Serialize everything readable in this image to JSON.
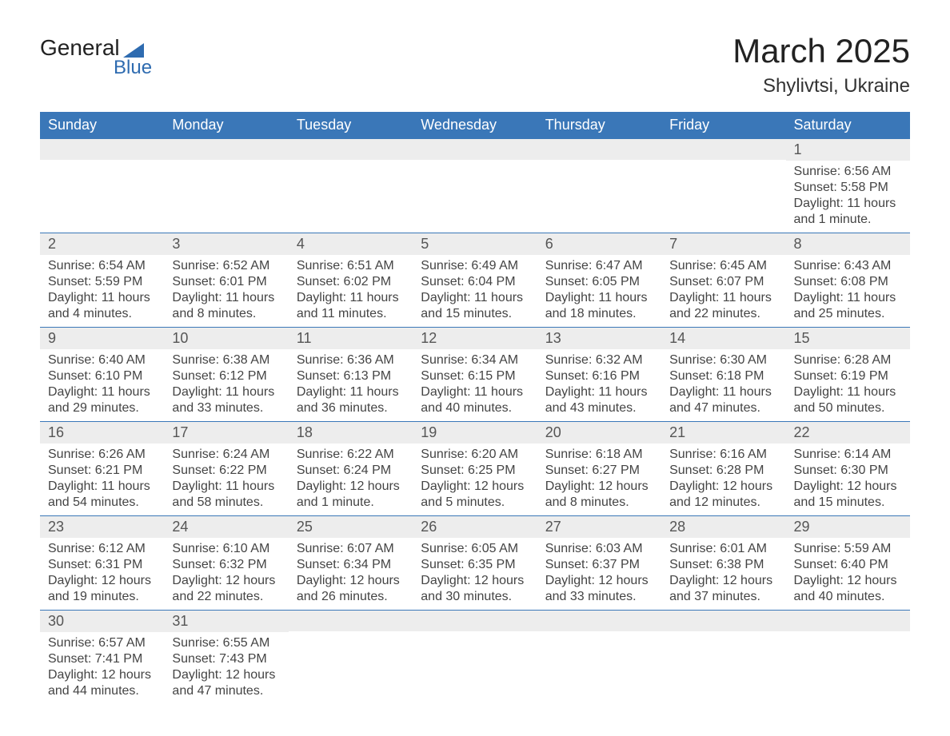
{
  "branding": {
    "logo_main": "General",
    "logo_sub": "Blue",
    "logo_color": "#2e6bb0"
  },
  "title": "March 2025",
  "location": "Shylivtsi, Ukraine",
  "header_bg": "#3a77b8",
  "stripe_bg": "#ededed",
  "text_color": "#444444",
  "day_headers": [
    "Sunday",
    "Monday",
    "Tuesday",
    "Wednesday",
    "Thursday",
    "Friday",
    "Saturday"
  ],
  "weeks": [
    {
      "cells": [
        {
          "num": "",
          "lines": [
            "",
            "",
            "",
            ""
          ]
        },
        {
          "num": "",
          "lines": [
            "",
            "",
            "",
            ""
          ]
        },
        {
          "num": "",
          "lines": [
            "",
            "",
            "",
            ""
          ]
        },
        {
          "num": "",
          "lines": [
            "",
            "",
            "",
            ""
          ]
        },
        {
          "num": "",
          "lines": [
            "",
            "",
            "",
            ""
          ]
        },
        {
          "num": "",
          "lines": [
            "",
            "",
            "",
            ""
          ]
        },
        {
          "num": "1",
          "lines": [
            "Sunrise: 6:56 AM",
            "Sunset: 5:58 PM",
            "Daylight: 11 hours",
            "and 1 minute."
          ]
        }
      ]
    },
    {
      "cells": [
        {
          "num": "2",
          "lines": [
            "Sunrise: 6:54 AM",
            "Sunset: 5:59 PM",
            "Daylight: 11 hours",
            "and 4 minutes."
          ]
        },
        {
          "num": "3",
          "lines": [
            "Sunrise: 6:52 AM",
            "Sunset: 6:01 PM",
            "Daylight: 11 hours",
            "and 8 minutes."
          ]
        },
        {
          "num": "4",
          "lines": [
            "Sunrise: 6:51 AM",
            "Sunset: 6:02 PM",
            "Daylight: 11 hours",
            "and 11 minutes."
          ]
        },
        {
          "num": "5",
          "lines": [
            "Sunrise: 6:49 AM",
            "Sunset: 6:04 PM",
            "Daylight: 11 hours",
            "and 15 minutes."
          ]
        },
        {
          "num": "6",
          "lines": [
            "Sunrise: 6:47 AM",
            "Sunset: 6:05 PM",
            "Daylight: 11 hours",
            "and 18 minutes."
          ]
        },
        {
          "num": "7",
          "lines": [
            "Sunrise: 6:45 AM",
            "Sunset: 6:07 PM",
            "Daylight: 11 hours",
            "and 22 minutes."
          ]
        },
        {
          "num": "8",
          "lines": [
            "Sunrise: 6:43 AM",
            "Sunset: 6:08 PM",
            "Daylight: 11 hours",
            "and 25 minutes."
          ]
        }
      ]
    },
    {
      "cells": [
        {
          "num": "9",
          "lines": [
            "Sunrise: 6:40 AM",
            "Sunset: 6:10 PM",
            "Daylight: 11 hours",
            "and 29 minutes."
          ]
        },
        {
          "num": "10",
          "lines": [
            "Sunrise: 6:38 AM",
            "Sunset: 6:12 PM",
            "Daylight: 11 hours",
            "and 33 minutes."
          ]
        },
        {
          "num": "11",
          "lines": [
            "Sunrise: 6:36 AM",
            "Sunset: 6:13 PM",
            "Daylight: 11 hours",
            "and 36 minutes."
          ]
        },
        {
          "num": "12",
          "lines": [
            "Sunrise: 6:34 AM",
            "Sunset: 6:15 PM",
            "Daylight: 11 hours",
            "and 40 minutes."
          ]
        },
        {
          "num": "13",
          "lines": [
            "Sunrise: 6:32 AM",
            "Sunset: 6:16 PM",
            "Daylight: 11 hours",
            "and 43 minutes."
          ]
        },
        {
          "num": "14",
          "lines": [
            "Sunrise: 6:30 AM",
            "Sunset: 6:18 PM",
            "Daylight: 11 hours",
            "and 47 minutes."
          ]
        },
        {
          "num": "15",
          "lines": [
            "Sunrise: 6:28 AM",
            "Sunset: 6:19 PM",
            "Daylight: 11 hours",
            "and 50 minutes."
          ]
        }
      ]
    },
    {
      "cells": [
        {
          "num": "16",
          "lines": [
            "Sunrise: 6:26 AM",
            "Sunset: 6:21 PM",
            "Daylight: 11 hours",
            "and 54 minutes."
          ]
        },
        {
          "num": "17",
          "lines": [
            "Sunrise: 6:24 AM",
            "Sunset: 6:22 PM",
            "Daylight: 11 hours",
            "and 58 minutes."
          ]
        },
        {
          "num": "18",
          "lines": [
            "Sunrise: 6:22 AM",
            "Sunset: 6:24 PM",
            "Daylight: 12 hours",
            "and 1 minute."
          ]
        },
        {
          "num": "19",
          "lines": [
            "Sunrise: 6:20 AM",
            "Sunset: 6:25 PM",
            "Daylight: 12 hours",
            "and 5 minutes."
          ]
        },
        {
          "num": "20",
          "lines": [
            "Sunrise: 6:18 AM",
            "Sunset: 6:27 PM",
            "Daylight: 12 hours",
            "and 8 minutes."
          ]
        },
        {
          "num": "21",
          "lines": [
            "Sunrise: 6:16 AM",
            "Sunset: 6:28 PM",
            "Daylight: 12 hours",
            "and 12 minutes."
          ]
        },
        {
          "num": "22",
          "lines": [
            "Sunrise: 6:14 AM",
            "Sunset: 6:30 PM",
            "Daylight: 12 hours",
            "and 15 minutes."
          ]
        }
      ]
    },
    {
      "cells": [
        {
          "num": "23",
          "lines": [
            "Sunrise: 6:12 AM",
            "Sunset: 6:31 PM",
            "Daylight: 12 hours",
            "and 19 minutes."
          ]
        },
        {
          "num": "24",
          "lines": [
            "Sunrise: 6:10 AM",
            "Sunset: 6:32 PM",
            "Daylight: 12 hours",
            "and 22 minutes."
          ]
        },
        {
          "num": "25",
          "lines": [
            "Sunrise: 6:07 AM",
            "Sunset: 6:34 PM",
            "Daylight: 12 hours",
            "and 26 minutes."
          ]
        },
        {
          "num": "26",
          "lines": [
            "Sunrise: 6:05 AM",
            "Sunset: 6:35 PM",
            "Daylight: 12 hours",
            "and 30 minutes."
          ]
        },
        {
          "num": "27",
          "lines": [
            "Sunrise: 6:03 AM",
            "Sunset: 6:37 PM",
            "Daylight: 12 hours",
            "and 33 minutes."
          ]
        },
        {
          "num": "28",
          "lines": [
            "Sunrise: 6:01 AM",
            "Sunset: 6:38 PM",
            "Daylight: 12 hours",
            "and 37 minutes."
          ]
        },
        {
          "num": "29",
          "lines": [
            "Sunrise: 5:59 AM",
            "Sunset: 6:40 PM",
            "Daylight: 12 hours",
            "and 40 minutes."
          ]
        }
      ]
    },
    {
      "cells": [
        {
          "num": "30",
          "lines": [
            "Sunrise: 6:57 AM",
            "Sunset: 7:41 PM",
            "Daylight: 12 hours",
            "and 44 minutes."
          ]
        },
        {
          "num": "31",
          "lines": [
            "Sunrise: 6:55 AM",
            "Sunset: 7:43 PM",
            "Daylight: 12 hours",
            "and 47 minutes."
          ]
        },
        {
          "num": "",
          "lines": [
            "",
            "",
            "",
            ""
          ]
        },
        {
          "num": "",
          "lines": [
            "",
            "",
            "",
            ""
          ]
        },
        {
          "num": "",
          "lines": [
            "",
            "",
            "",
            ""
          ]
        },
        {
          "num": "",
          "lines": [
            "",
            "",
            "",
            ""
          ]
        },
        {
          "num": "",
          "lines": [
            "",
            "",
            "",
            ""
          ]
        }
      ]
    }
  ]
}
